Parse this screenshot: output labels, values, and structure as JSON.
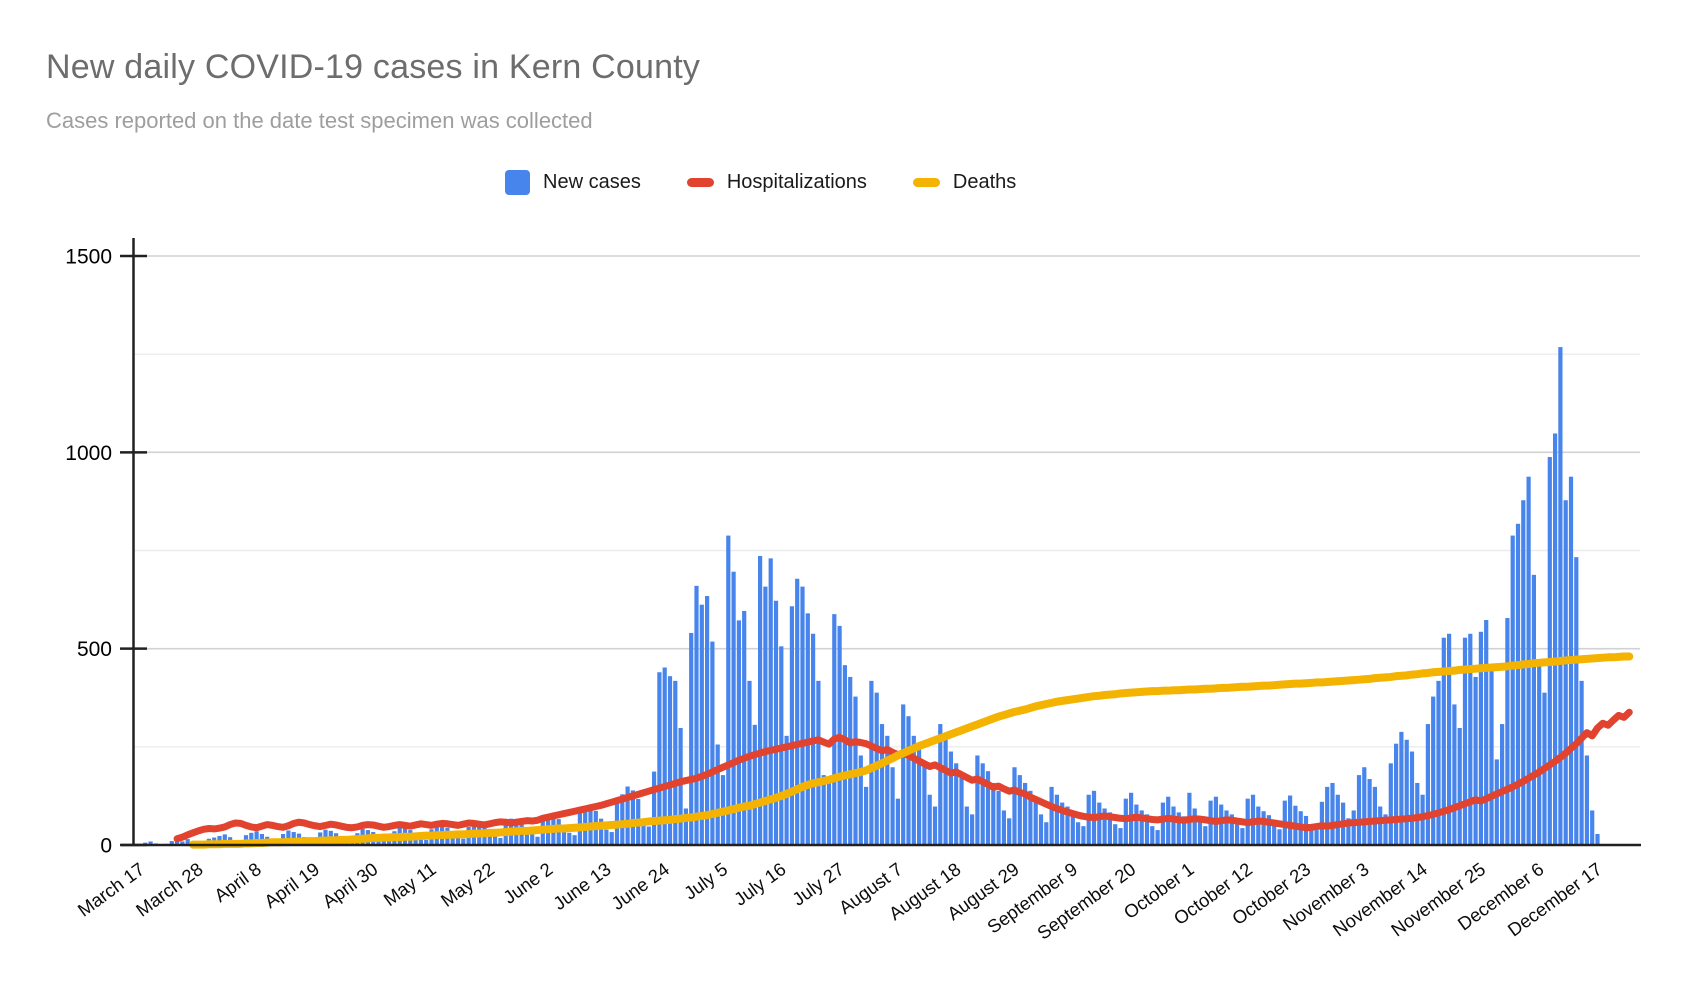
{
  "title": "New daily COVID-19 cases in Kern County",
  "subtitle": "Cases reported on the date test specimen was collected",
  "legend": [
    {
      "label": "New cases",
      "color": "#4784ec",
      "swatch": "square"
    },
    {
      "label": "Hospitalizations",
      "color": "#e1432e",
      "swatch": "line"
    },
    {
      "label": "Deaths",
      "color": "#f3b300",
      "swatch": "line"
    }
  ],
  "colors": {
    "bars": "#4784ec",
    "hospitalizations_line": "#e1432e",
    "deaths_line": "#f3b300",
    "axis": "#212121",
    "major_gridline": "#d2d2d2",
    "minor_gridline": "#ececec"
  },
  "chart_data": {
    "type": "bar",
    "title": "New daily COVID-19 cases in Kern County",
    "subtitle": "Cases reported on the date test specimen was collected",
    "xlabel": "",
    "ylabel": "",
    "ylim": [
      0,
      1500
    ],
    "y_major_ticks": [
      0,
      500,
      1000,
      1500
    ],
    "y_tick_labels": [
      "0",
      "500",
      "1000",
      "1500"
    ],
    "y_minor_gridlines": [
      250,
      750,
      1250
    ],
    "grid": "horizontal",
    "legend_position": "top-center",
    "days": 276,
    "x_start_label": "March 17",
    "x_end_label": "December 17",
    "x_tick_interval_days": 11,
    "x_tick_labels": [
      "March 17",
      "March 28",
      "April 8",
      "April 19",
      "April 30",
      "May 11",
      "May 22",
      "June 2",
      "June 13",
      "June 24",
      "July 5",
      "July 16",
      "July 27",
      "August 7",
      "August 18",
      "August 29",
      "September 9",
      "September 20",
      "October 1",
      "October 12",
      "October 23",
      "November 3",
      "November 14",
      "November 25",
      "December 6",
      "December 17"
    ],
    "series": [
      {
        "name": "New cases",
        "type": "bar",
        "color": "#4784ec",
        "values": [
          2,
          6,
          9,
          4,
          1,
          3,
          10,
          13,
          9,
          15,
          8,
          3,
          5,
          16,
          19,
          23,
          27,
          20,
          8,
          5,
          25,
          31,
          35,
          28,
          21,
          9,
          7,
          28,
          37,
          33,
          29,
          20,
          11,
          8,
          32,
          39,
          36,
          30,
          23,
          12,
          9,
          30,
          41,
          38,
          33,
          27,
          15,
          11,
          35,
          45,
          42,
          38,
          29,
          17,
          13,
          40,
          53,
          49,
          44,
          35,
          21,
          16,
          46,
          59,
          55,
          50,
          39,
          24,
          18,
          53,
          67,
          62,
          57,
          45,
          27,
          21,
          61,
          79,
          73,
          66,
          51,
          31,
          25,
          85,
          99,
          93,
          87,
          67,
          39,
          33,
          109,
          129,
          149,
          139,
          117,
          59,
          47,
          187,
          440,
          452,
          430,
          418,
          298,
          93,
          540,
          660,
          612,
          634,
          518,
          256,
          178,
          788,
          696,
          572,
          596,
          418,
          306,
          736,
          658,
          730,
          622,
          506,
          278,
          608,
          678,
          658,
          590,
          538,
          418,
          178,
          158,
          588,
          558,
          458,
          428,
          378,
          228,
          148,
          418,
          388,
          308,
          278,
          198,
          118,
          358,
          328,
          278,
          248,
          208,
          128,
          98,
          308,
          278,
          238,
          208,
          178,
          98,
          78,
          228,
          208,
          188,
          158,
          138,
          88,
          68,
          198,
          178,
          158,
          138,
          118,
          78,
          58,
          148,
          128,
          108,
          98,
          88,
          58,
          48,
          128,
          138,
          108,
          93,
          83,
          53,
          43,
          118,
          133,
          103,
          88,
          78,
          48,
          38,
          108,
          123,
          98,
          83,
          73,
          133,
          93,
          58,
          48,
          113,
          123,
          103,
          88,
          78,
          53,
          43,
          118,
          128,
          98,
          86,
          76,
          50,
          40,
          113,
          126,
          100,
          86,
          74,
          48,
          38,
          110,
          148,
          158,
          128,
          108,
          68,
          88,
          178,
          198,
          168,
          148,
          98,
          78,
          208,
          258,
          288,
          268,
          238,
          158,
          128,
          308,
          378,
          418,
          528,
          538,
          358,
          298,
          528,
          538,
          428,
          543,
          573,
          448,
          218,
          308,
          578,
          788,
          818,
          878,
          938,
          688,
          458,
          388,
          988,
          1048,
          1268,
          878,
          938,
          733,
          418,
          228,
          88,
          28
        ]
      },
      {
        "name": "Hospitalizations",
        "type": "line",
        "color": "#e1432e",
        "stroke_width": 7,
        "start_day": 7,
        "values": [
          2,
          3,
          4,
          6,
          8,
          10,
          13,
          16,
          20,
          26,
          31,
          36,
          40,
          42,
          41,
          43,
          46,
          52,
          56,
          55,
          50,
          46,
          44,
          48,
          52,
          50,
          47,
          45,
          49,
          55,
          58,
          56,
          52,
          49,
          47,
          50,
          53,
          51,
          48,
          45,
          44,
          46,
          50,
          52,
          51,
          48,
          45,
          47,
          50,
          52,
          50,
          48,
          51,
          54,
          52,
          50,
          53,
          55,
          54,
          52,
          50,
          53,
          56,
          55,
          53,
          51,
          54,
          57,
          59,
          58,
          56,
          58,
          60,
          62,
          61,
          63,
          68,
          71,
          74,
          77,
          80,
          83,
          86,
          89,
          92,
          95,
          98,
          101,
          105,
          109,
          113,
          117,
          121,
          125,
          129,
          133,
          137,
          141,
          145,
          149,
          153,
          157,
          161,
          164,
          167,
          170,
          175,
          180,
          186,
          192,
          198,
          204,
          210,
          216,
          221,
          226,
          230,
          234,
          238,
          241,
          244,
          247,
          250,
          253,
          256,
          259,
          262,
          265,
          268,
          262,
          257,
          270,
          274,
          268,
          260,
          263,
          261,
          258,
          252,
          246,
          240,
          243,
          236,
          230,
          234,
          228,
          221,
          214,
          207,
          200,
          204,
          197,
          190,
          183,
          186,
          179,
          172,
          165,
          168,
          161,
          154,
          147,
          150,
          143,
          137,
          140,
          134,
          130,
          122,
          116,
          110,
          104,
          98,
          93,
          88,
          84,
          80,
          76,
          73,
          71,
          70,
          72,
          74,
          72,
          70,
          68,
          67,
          69,
          71,
          69,
          67,
          65,
          64,
          66,
          68,
          66,
          64,
          63,
          65,
          67,
          66,
          64,
          62,
          60,
          62,
          64,
          63,
          61,
          59,
          57,
          59,
          61,
          60,
          58,
          56,
          54,
          52,
          50,
          48,
          46,
          44,
          45,
          47,
          49,
          48,
          50,
          52,
          54,
          56,
          57,
          58,
          59,
          60,
          61,
          62,
          63,
          64,
          65,
          66,
          67,
          68,
          70,
          72,
          75,
          78,
          82,
          86,
          90,
          95,
          100,
          105,
          110,
          115,
          112,
          118,
          124,
          130,
          136,
          142,
          148,
          155,
          162,
          170,
          178,
          186,
          195,
          204,
          213,
          223,
          234,
          246,
          258,
          272,
          286,
          278,
          298
        ],
        "extension": [
          310,
          305,
          318,
          330,
          325,
          338
        ]
      },
      {
        "name": "Deaths",
        "type": "line",
        "color": "#f3b300",
        "stroke_width": 8,
        "start_day": 10,
        "values": [
          0,
          0,
          0,
          0,
          0,
          0,
          0,
          0,
          0,
          0,
          1,
          1,
          1,
          2,
          2,
          2,
          3,
          3,
          3,
          3,
          4,
          4,
          5,
          5,
          6,
          7,
          7,
          7,
          8,
          8,
          9,
          9,
          10,
          10,
          11,
          11,
          12,
          12,
          13,
          13,
          14,
          15,
          16,
          17,
          18,
          18,
          19,
          19,
          20,
          20,
          21,
          21,
          22,
          23,
          24,
          24,
          25,
          25,
          26,
          26,
          27,
          27,
          28,
          29,
          29,
          30,
          31,
          31,
          32,
          33,
          34,
          35,
          36,
          36,
          37,
          38,
          39,
          40,
          41,
          42,
          42,
          43,
          44,
          45,
          46,
          47,
          48,
          49,
          50,
          51,
          52,
          53,
          54,
          56,
          57,
          58,
          60,
          61,
          62,
          63,
          64,
          66,
          67,
          69,
          70,
          72,
          74,
          76,
          79,
          82,
          85,
          88,
          91,
          95,
          98,
          100,
          104,
          108,
          112,
          116,
          120,
          125,
          130,
          136,
          142,
          148,
          153,
          157,
          160,
          163,
          166,
          170,
          174,
          177,
          180,
          183,
          186,
          190,
          196,
          202,
          208,
          215,
          221,
          228,
          234,
          240,
          246,
          252,
          257,
          262,
          267,
          272,
          277,
          282,
          287,
          292,
          297,
          302,
          307,
          312,
          317,
          322,
          327,
          331,
          335,
          339,
          342,
          345,
          349,
          353,
          356,
          359,
          362,
          365,
          367,
          369,
          371,
          373,
          375,
          377,
          379,
          380,
          382,
          383,
          384,
          386,
          387,
          388,
          389,
          390,
          391,
          392,
          392,
          393,
          393,
          394,
          394,
          395,
          396,
          396,
          397,
          398,
          398,
          399,
          400,
          400,
          401,
          402,
          403,
          403,
          404,
          405,
          406,
          406,
          407,
          408,
          409,
          410,
          411,
          411,
          412,
          413,
          414,
          414,
          415,
          416,
          417,
          418,
          419,
          420,
          421,
          422,
          423,
          425,
          426,
          427,
          428,
          430,
          431,
          432,
          434,
          435,
          437,
          438,
          440,
          441,
          442,
          443,
          444,
          446,
          447,
          448,
          449,
          450,
          451,
          452,
          453,
          454,
          455,
          457,
          458,
          460,
          461,
          463,
          464,
          465,
          466,
          467,
          469,
          470,
          471,
          472,
          473,
          474,
          475,
          476
        ],
        "extension": [
          477,
          478,
          478,
          479,
          480,
          480
        ]
      }
    ]
  }
}
